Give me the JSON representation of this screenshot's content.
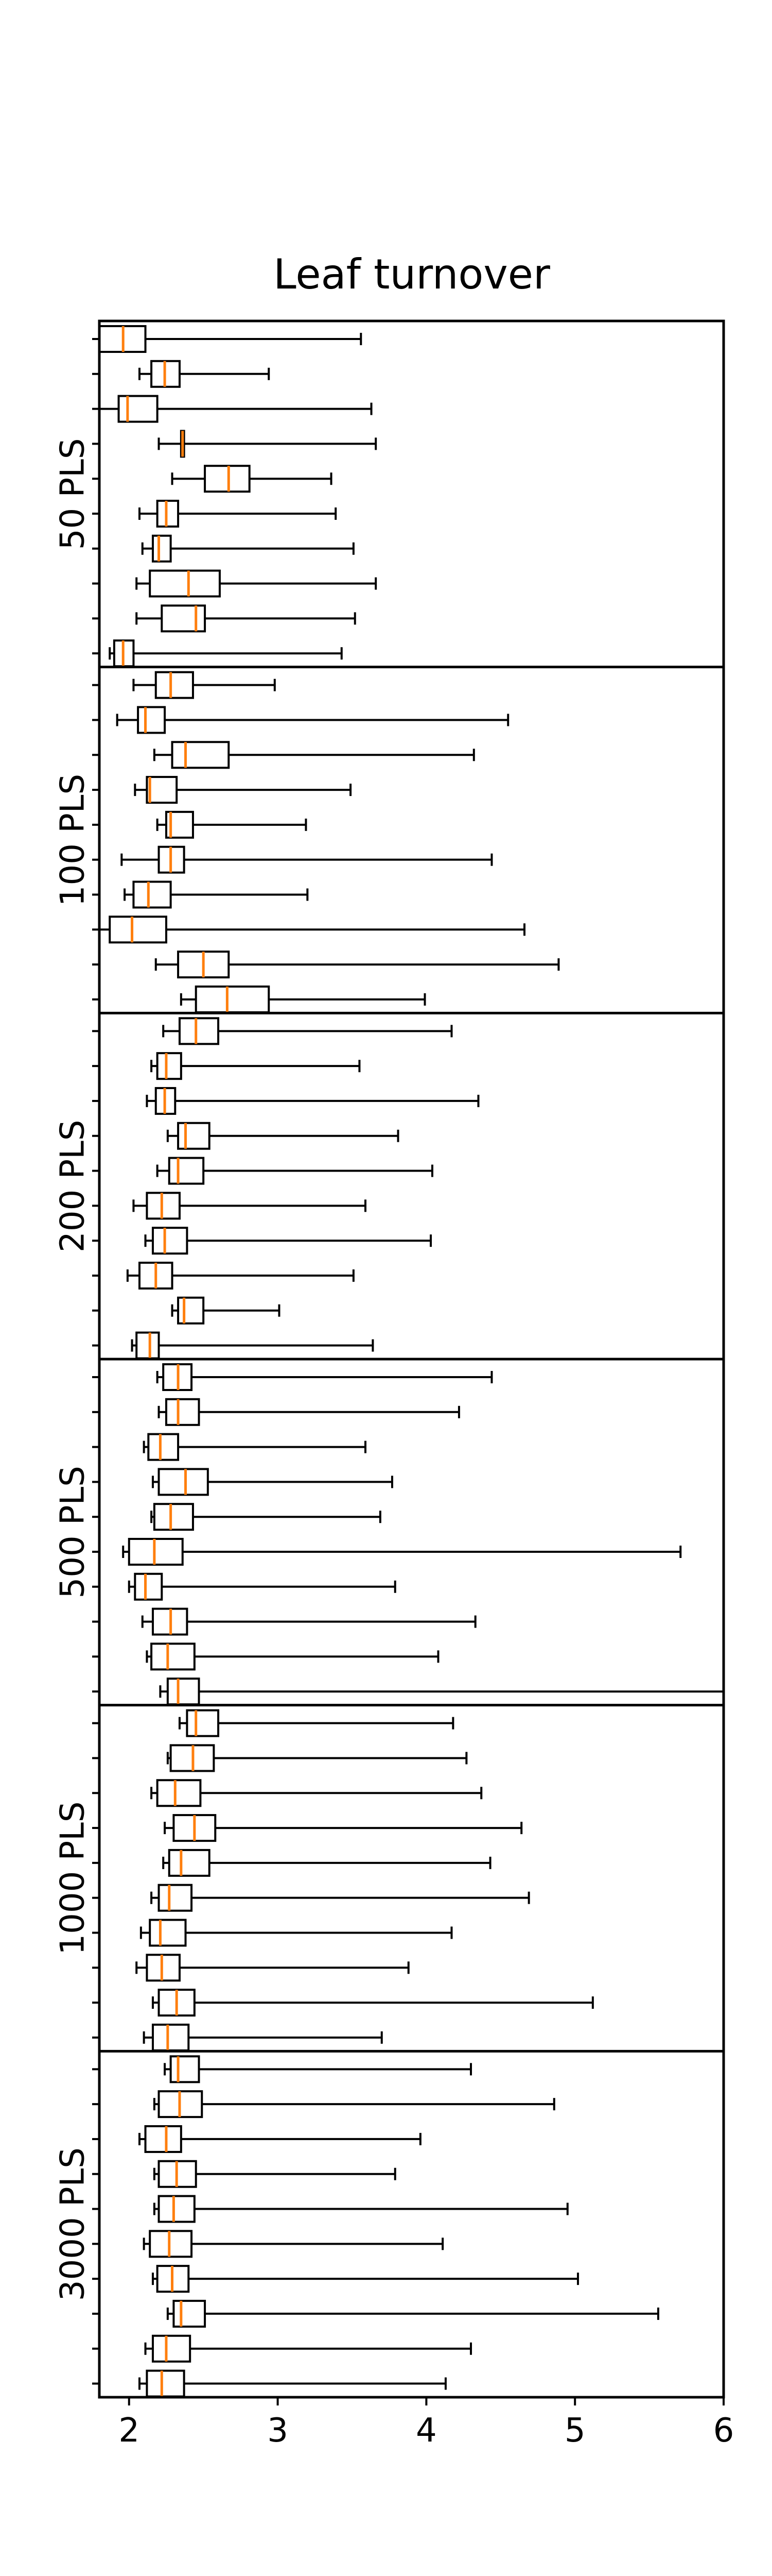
{
  "chart_data": {
    "type": "boxplot",
    "orientation": "horizontal",
    "title": "Leaf turnover",
    "xlabel": "",
    "ylabel": "",
    "xlim": [
      1.8,
      6.0
    ],
    "x_ticks": [
      2,
      3,
      4,
      5,
      6
    ],
    "grid": false,
    "legend": false,
    "colors": {
      "box": "#000000",
      "median": "#ff7f0e",
      "background": "#ffffff"
    },
    "groups": [
      {
        "label": "50 PLS",
        "boxes": [
          {
            "whisker_low": 1.8,
            "q1": 1.8,
            "median": 1.96,
            "q3": 2.11,
            "whisker_high": 3.56
          },
          {
            "whisker_low": 2.07,
            "q1": 2.15,
            "median": 2.24,
            "q3": 2.34,
            "whisker_high": 2.94
          },
          {
            "whisker_low": 1.8,
            "q1": 1.93,
            "median": 1.99,
            "q3": 2.19,
            "whisker_high": 3.63
          },
          {
            "whisker_low": 2.2,
            "q1": 2.35,
            "median": 2.36,
            "q3": 2.37,
            "whisker_high": 3.66
          },
          {
            "whisker_low": 2.29,
            "q1": 2.51,
            "median": 2.67,
            "q3": 2.81,
            "whisker_high": 3.36
          },
          {
            "whisker_low": 2.07,
            "q1": 2.19,
            "median": 2.25,
            "q3": 2.33,
            "whisker_high": 3.39
          },
          {
            "whisker_low": 2.09,
            "q1": 2.16,
            "median": 2.2,
            "q3": 2.28,
            "whisker_high": 3.51
          },
          {
            "whisker_low": 2.05,
            "q1": 2.14,
            "median": 2.4,
            "q3": 2.61,
            "whisker_high": 3.66
          },
          {
            "whisker_low": 2.05,
            "q1": 2.22,
            "median": 2.45,
            "q3": 2.51,
            "whisker_high": 3.52
          },
          {
            "whisker_low": 1.87,
            "q1": 1.9,
            "median": 1.96,
            "q3": 2.03,
            "whisker_high": 3.43
          }
        ]
      },
      {
        "label": "100 PLS",
        "boxes": [
          {
            "whisker_low": 2.03,
            "q1": 2.18,
            "median": 2.28,
            "q3": 2.43,
            "whisker_high": 2.98
          },
          {
            "whisker_low": 1.92,
            "q1": 2.06,
            "median": 2.11,
            "q3": 2.24,
            "whisker_high": 4.55
          },
          {
            "whisker_low": 2.17,
            "q1": 2.29,
            "median": 2.38,
            "q3": 2.67,
            "whisker_high": 4.32
          },
          {
            "whisker_low": 2.04,
            "q1": 2.12,
            "median": 2.14,
            "q3": 2.32,
            "whisker_high": 3.49
          },
          {
            "whisker_low": 2.19,
            "q1": 2.25,
            "median": 2.28,
            "q3": 2.43,
            "whisker_high": 3.19
          },
          {
            "whisker_low": 1.95,
            "q1": 2.2,
            "median": 2.28,
            "q3": 2.37,
            "whisker_high": 4.44
          },
          {
            "whisker_low": 1.97,
            "q1": 2.03,
            "median": 2.13,
            "q3": 2.28,
            "whisker_high": 3.2
          },
          {
            "whisker_low": 1.8,
            "q1": 1.87,
            "median": 2.02,
            "q3": 2.25,
            "whisker_high": 4.66
          },
          {
            "whisker_low": 2.18,
            "q1": 2.33,
            "median": 2.5,
            "q3": 2.67,
            "whisker_high": 4.89
          },
          {
            "whisker_low": 2.35,
            "q1": 2.45,
            "median": 2.66,
            "q3": 2.94,
            "whisker_high": 3.99
          }
        ]
      },
      {
        "label": "200 PLS",
        "boxes": [
          {
            "whisker_low": 2.23,
            "q1": 2.34,
            "median": 2.45,
            "q3": 2.6,
            "whisker_high": 4.17
          },
          {
            "whisker_low": 2.15,
            "q1": 2.19,
            "median": 2.25,
            "q3": 2.35,
            "whisker_high": 3.55
          },
          {
            "whisker_low": 2.12,
            "q1": 2.18,
            "median": 2.24,
            "q3": 2.31,
            "whisker_high": 4.35
          },
          {
            "whisker_low": 2.26,
            "q1": 2.33,
            "median": 2.38,
            "q3": 2.54,
            "whisker_high": 3.81
          },
          {
            "whisker_low": 2.19,
            "q1": 2.27,
            "median": 2.33,
            "q3": 2.5,
            "whisker_high": 4.04
          },
          {
            "whisker_low": 2.03,
            "q1": 2.12,
            "median": 2.22,
            "q3": 2.34,
            "whisker_high": 3.59
          },
          {
            "whisker_low": 2.11,
            "q1": 2.16,
            "median": 2.24,
            "q3": 2.39,
            "whisker_high": 4.03
          },
          {
            "whisker_low": 1.99,
            "q1": 2.07,
            "median": 2.18,
            "q3": 2.29,
            "whisker_high": 3.51
          },
          {
            "whisker_low": 2.29,
            "q1": 2.33,
            "median": 2.37,
            "q3": 2.5,
            "whisker_high": 3.01
          },
          {
            "whisker_low": 2.02,
            "q1": 2.05,
            "median": 2.14,
            "q3": 2.2,
            "whisker_high": 3.64
          }
        ]
      },
      {
        "label": "500 PLS",
        "boxes": [
          {
            "whisker_low": 2.19,
            "q1": 2.23,
            "median": 2.33,
            "q3": 2.42,
            "whisker_high": 4.44
          },
          {
            "whisker_low": 2.2,
            "q1": 2.25,
            "median": 2.33,
            "q3": 2.47,
            "whisker_high": 4.22
          },
          {
            "whisker_low": 2.1,
            "q1": 2.13,
            "median": 2.21,
            "q3": 2.33,
            "whisker_high": 3.59
          },
          {
            "whisker_low": 2.16,
            "q1": 2.2,
            "median": 2.38,
            "q3": 2.53,
            "whisker_high": 3.77
          },
          {
            "whisker_low": 2.15,
            "q1": 2.17,
            "median": 2.28,
            "q3": 2.43,
            "whisker_high": 3.69
          },
          {
            "whisker_low": 1.96,
            "q1": 2.0,
            "median": 2.17,
            "q3": 2.36,
            "whisker_high": 5.71
          },
          {
            "whisker_low": 2.0,
            "q1": 2.04,
            "median": 2.11,
            "q3": 2.22,
            "whisker_high": 3.79
          },
          {
            "whisker_low": 2.09,
            "q1": 2.16,
            "median": 2.28,
            "q3": 2.39,
            "whisker_high": 4.33
          },
          {
            "whisker_low": 2.12,
            "q1": 2.15,
            "median": 2.26,
            "q3": 2.44,
            "whisker_high": 4.08
          },
          {
            "whisker_low": 2.21,
            "q1": 2.26,
            "median": 2.33,
            "q3": 2.47,
            "whisker_high": 6.0
          }
        ]
      },
      {
        "label": "1000 PLS",
        "boxes": [
          {
            "whisker_low": 2.34,
            "q1": 2.39,
            "median": 2.45,
            "q3": 2.6,
            "whisker_high": 4.18
          },
          {
            "whisker_low": 2.26,
            "q1": 2.28,
            "median": 2.43,
            "q3": 2.57,
            "whisker_high": 4.27
          },
          {
            "whisker_low": 2.15,
            "q1": 2.19,
            "median": 2.31,
            "q3": 2.48,
            "whisker_high": 4.37
          },
          {
            "whisker_low": 2.24,
            "q1": 2.3,
            "median": 2.44,
            "q3": 2.58,
            "whisker_high": 4.64
          },
          {
            "whisker_low": 2.23,
            "q1": 2.27,
            "median": 2.35,
            "q3": 2.54,
            "whisker_high": 4.43
          },
          {
            "whisker_low": 2.15,
            "q1": 2.2,
            "median": 2.27,
            "q3": 2.42,
            "whisker_high": 4.69
          },
          {
            "whisker_low": 2.08,
            "q1": 2.14,
            "median": 2.21,
            "q3": 2.38,
            "whisker_high": 4.17
          },
          {
            "whisker_low": 2.05,
            "q1": 2.12,
            "median": 2.22,
            "q3": 2.34,
            "whisker_high": 3.88
          },
          {
            "whisker_low": 2.16,
            "q1": 2.2,
            "median": 2.32,
            "q3": 2.44,
            "whisker_high": 5.12
          },
          {
            "whisker_low": 2.1,
            "q1": 2.16,
            "median": 2.26,
            "q3": 2.4,
            "whisker_high": 3.7
          }
        ]
      },
      {
        "label": "3000 PLS",
        "boxes": [
          {
            "whisker_low": 2.24,
            "q1": 2.28,
            "median": 2.33,
            "q3": 2.47,
            "whisker_high": 4.3
          },
          {
            "whisker_low": 2.17,
            "q1": 2.2,
            "median": 2.34,
            "q3": 2.49,
            "whisker_high": 4.86
          },
          {
            "whisker_low": 2.07,
            "q1": 2.11,
            "median": 2.25,
            "q3": 2.35,
            "whisker_high": 3.96
          },
          {
            "whisker_low": 2.17,
            "q1": 2.2,
            "median": 2.32,
            "q3": 2.45,
            "whisker_high": 3.79
          },
          {
            "whisker_low": 2.17,
            "q1": 2.2,
            "median": 2.3,
            "q3": 2.44,
            "whisker_high": 4.95
          },
          {
            "whisker_low": 2.1,
            "q1": 2.14,
            "median": 2.27,
            "q3": 2.42,
            "whisker_high": 4.11
          },
          {
            "whisker_low": 2.16,
            "q1": 2.19,
            "median": 2.29,
            "q3": 2.4,
            "whisker_high": 5.02
          },
          {
            "whisker_low": 2.26,
            "q1": 2.3,
            "median": 2.35,
            "q3": 2.51,
            "whisker_high": 5.56
          },
          {
            "whisker_low": 2.11,
            "q1": 2.16,
            "median": 2.25,
            "q3": 2.41,
            "whisker_high": 4.3
          },
          {
            "whisker_low": 2.07,
            "q1": 2.12,
            "median": 2.22,
            "q3": 2.37,
            "whisker_high": 4.13
          }
        ]
      }
    ]
  }
}
